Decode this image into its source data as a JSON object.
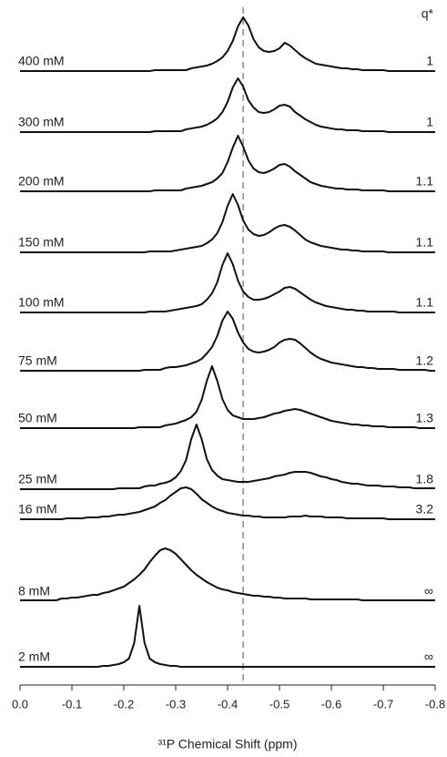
{
  "chart_data": {
    "type": "line",
    "x_label": "³¹P Chemical Shift (ppm)",
    "q_header": "q*",
    "reference_line": -0.43,
    "reference_color": "#888888",
    "xlim": [
      0,
      -0.8
    ],
    "xticks": [
      {
        "value": 0,
        "label": "0.0"
      },
      -0.1,
      -0.2,
      -0.3,
      -0.4,
      -0.5,
      -0.6,
      -0.7,
      -0.8
    ],
    "x": [
      0,
      -0.01,
      -0.02,
      -0.03,
      -0.04,
      -0.05,
      -0.06,
      -0.07,
      -0.08,
      -0.09,
      -0.1,
      -0.11,
      -0.12,
      -0.13,
      -0.14,
      -0.15,
      -0.16,
      -0.17,
      -0.18,
      -0.19,
      -0.2,
      -0.21,
      -0.22,
      -0.23,
      -0.24,
      -0.25,
      -0.26,
      -0.27,
      -0.28,
      -0.29,
      -0.3,
      -0.31,
      -0.32,
      -0.33,
      -0.34,
      -0.35,
      -0.36,
      -0.37,
      -0.38,
      -0.39,
      -0.4,
      -0.41,
      -0.42,
      -0.43,
      -0.44,
      -0.45,
      -0.46,
      -0.47,
      -0.48,
      -0.49,
      -0.5,
      -0.51,
      -0.52,
      -0.53,
      -0.54,
      -0.55,
      -0.56,
      -0.57,
      -0.58,
      -0.59,
      -0.6,
      -0.61,
      -0.62,
      -0.63,
      -0.64,
      -0.65,
      -0.66,
      -0.67,
      -0.68,
      -0.69,
      -0.7,
      -0.71,
      -0.72,
      -0.73,
      -0.74,
      -0.75,
      -0.76,
      -0.77,
      -0.78,
      -0.79,
      -0.8
    ],
    "series": [
      {
        "name": "400 mM",
        "q": 1,
        "color": "#111111",
        "values": [
          0,
          0,
          0,
          0,
          0,
          0,
          0,
          0,
          0,
          0,
          0,
          0,
          0,
          0,
          0,
          0,
          0,
          0,
          0,
          0,
          0,
          0,
          0,
          0,
          0,
          0,
          1,
          1,
          1,
          1,
          1,
          1,
          1,
          3,
          4,
          5,
          6,
          8,
          11,
          15,
          22,
          33,
          49,
          59,
          50,
          35,
          26,
          22,
          21,
          22,
          25,
          31,
          28,
          23,
          18,
          14,
          11,
          8,
          7,
          6,
          5,
          4,
          3,
          3,
          2,
          2,
          1,
          1,
          1,
          1,
          1,
          0,
          0,
          0,
          0,
          0,
          0,
          0,
          0,
          0,
          0
        ]
      },
      {
        "name": "300 mM",
        "q": 1,
        "color": "#111111",
        "values": [
          0,
          0,
          0,
          0,
          0,
          0,
          0,
          0,
          0,
          0,
          0,
          0,
          0,
          0,
          0,
          0,
          0,
          0,
          0,
          0,
          0,
          0,
          0,
          0,
          0,
          0,
          1,
          1,
          1,
          1,
          1,
          1,
          3,
          4,
          5,
          6,
          8,
          11,
          15,
          22,
          33,
          49,
          59,
          50,
          35,
          27,
          22,
          21,
          22,
          25,
          29,
          30,
          28,
          22,
          18,
          14,
          11,
          8,
          6,
          5,
          4,
          3,
          3,
          2,
          2,
          2,
          1,
          1,
          1,
          1,
          1,
          0,
          0,
          0,
          0,
          0,
          0,
          0,
          0,
          0,
          0
        ]
      },
      {
        "name": "200 mM",
        "q": 1.1,
        "color": "#111111",
        "values": [
          0,
          0,
          0,
          0,
          0,
          0,
          0,
          0,
          0,
          0,
          0,
          0,
          0,
          0,
          0,
          0,
          0,
          0,
          0,
          0,
          0,
          0,
          0,
          0,
          0,
          0,
          1,
          1,
          1,
          1,
          1,
          1,
          3,
          4,
          5,
          6,
          8,
          10,
          14,
          20,
          32,
          48,
          61,
          49,
          34,
          25,
          21,
          20,
          22,
          25,
          29,
          30,
          27,
          22,
          18,
          14,
          10,
          8,
          6,
          5,
          4,
          3,
          3,
          2,
          2,
          2,
          1,
          1,
          1,
          1,
          1,
          0,
          0,
          0,
          0,
          0,
          0,
          0,
          0,
          0,
          0
        ]
      },
      {
        "name": "150 mM",
        "q": 1.1,
        "color": "#111111",
        "values": [
          0,
          0,
          0,
          0,
          0,
          0,
          0,
          0,
          0,
          0,
          0,
          0,
          0,
          0,
          0,
          0,
          0,
          0,
          0,
          0,
          0,
          0,
          0,
          0,
          0,
          1,
          1,
          1,
          1,
          1,
          2,
          3,
          4,
          5,
          6,
          7,
          10,
          14,
          21,
          33,
          51,
          64,
          52,
          35,
          25,
          20,
          18,
          19,
          22,
          26,
          29,
          30,
          28,
          24,
          19,
          14,
          11,
          9,
          7,
          6,
          5,
          4,
          3,
          3,
          2,
          2,
          1,
          1,
          1,
          1,
          1,
          0,
          0,
          0,
          0,
          0,
          0,
          0,
          0,
          0,
          0
        ]
      },
      {
        "name": "100 mM",
        "q": 1.1,
        "color": "#111111",
        "values": [
          0,
          0,
          0,
          0,
          0,
          0,
          0,
          0,
          0,
          0,
          0,
          0,
          0,
          0,
          0,
          0,
          0,
          0,
          0,
          0,
          0,
          0,
          0,
          0,
          0,
          1,
          1,
          1,
          1,
          2,
          3,
          4,
          5,
          6,
          7,
          9,
          14,
          21,
          33,
          52,
          65,
          53,
          35,
          23,
          17,
          14,
          14,
          15,
          17,
          20,
          23,
          27,
          28,
          26,
          22,
          18,
          14,
          11,
          9,
          7,
          6,
          5,
          4,
          3,
          3,
          2,
          2,
          1,
          1,
          1,
          1,
          1,
          1,
          0,
          0,
          0,
          0,
          0,
          0,
          0,
          0
        ]
      },
      {
        "name": "75 mM",
        "q": 1.2,
        "color": "#111111",
        "values": [
          0,
          0,
          0,
          0,
          0,
          0,
          0,
          0,
          0,
          0,
          0,
          0,
          0,
          0,
          0,
          0,
          0,
          0,
          0,
          0,
          0,
          0,
          0,
          0,
          1,
          1,
          1,
          1,
          3,
          4,
          4,
          5,
          6,
          8,
          10,
          13,
          19,
          26,
          38,
          55,
          65,
          57,
          42,
          31,
          24,
          21,
          20,
          21,
          23,
          26,
          31,
          34,
          35,
          34,
          30,
          25,
          20,
          16,
          13,
          11,
          9,
          8,
          7,
          6,
          5,
          4,
          4,
          3,
          3,
          2,
          2,
          2,
          2,
          1,
          1,
          1,
          1,
          1,
          1,
          0,
          0
        ]
      },
      {
        "name": "50 mM",
        "q": 1.3,
        "color": "#111111",
        "values": [
          0,
          0,
          0,
          0,
          0,
          0,
          0,
          0,
          0,
          0,
          0,
          0,
          0,
          0,
          0,
          0,
          0,
          0,
          0,
          0,
          0,
          0,
          0,
          1,
          1,
          1,
          1,
          1,
          3,
          4,
          5,
          7,
          9,
          12,
          18,
          31,
          52,
          68,
          52,
          32,
          20,
          14,
          12,
          10,
          10,
          10,
          11,
          12,
          14,
          16,
          17,
          19,
          20,
          21,
          20,
          18,
          16,
          14,
          12,
          10,
          8,
          7,
          6,
          5,
          4,
          4,
          3,
          3,
          2,
          2,
          2,
          1,
          1,
          1,
          1,
          1,
          1,
          0,
          0,
          0,
          0
        ]
      },
      {
        "name": "25 mM",
        "q": 1.8,
        "color": "#111111",
        "values": [
          0,
          0,
          0,
          0,
          0,
          0,
          0,
          0,
          0,
          0,
          0,
          0,
          0,
          0,
          0,
          0,
          0,
          0,
          0,
          1,
          1,
          1,
          1,
          1,
          3,
          4,
          4,
          6,
          7,
          9,
          13,
          20,
          32,
          55,
          71,
          55,
          33,
          21,
          15,
          11,
          10,
          9,
          8,
          8,
          8,
          9,
          10,
          11,
          12,
          14,
          15,
          16,
          18,
          19,
          19,
          19,
          18,
          16,
          14,
          13,
          11,
          10,
          8,
          7,
          6,
          6,
          5,
          4,
          4,
          4,
          3,
          3,
          3,
          2,
          2,
          2,
          1,
          1,
          1,
          1,
          1
        ]
      },
      {
        "name": "16 mM",
        "q": 3.2,
        "color": "#111111",
        "values": [
          0,
          0,
          0,
          0,
          0,
          0,
          0,
          0,
          0,
          1,
          1,
          1,
          1,
          2,
          2,
          2,
          3,
          3,
          4,
          5,
          5,
          6,
          7,
          8,
          10,
          12,
          14,
          18,
          21,
          26,
          30,
          34,
          35,
          33,
          28,
          22,
          18,
          14,
          11,
          9,
          7,
          6,
          5,
          4,
          4,
          3,
          3,
          2,
          2,
          2,
          2,
          2,
          3,
          3,
          3,
          4,
          3,
          3,
          3,
          2,
          2,
          2,
          2,
          1,
          1,
          1,
          1,
          1,
          1,
          1,
          1,
          0,
          0,
          0,
          0,
          0,
          0,
          0,
          0,
          0,
          0
        ]
      },
      {
        "name": "8 mM",
        "q": "∞",
        "color": "#111111",
        "values": [
          1,
          1,
          1,
          1,
          1,
          1,
          1,
          1,
          3,
          3,
          4,
          4,
          5,
          6,
          7,
          7,
          9,
          10,
          12,
          14,
          16,
          20,
          24,
          29,
          35,
          43,
          50,
          56,
          58,
          56,
          52,
          46,
          40,
          34,
          29,
          25,
          21,
          18,
          15,
          13,
          12,
          10,
          9,
          8,
          7,
          6,
          6,
          5,
          5,
          4,
          4,
          3,
          3,
          3,
          3,
          3,
          2,
          2,
          2,
          2,
          2,
          2,
          2,
          2,
          2,
          2,
          1,
          1,
          1,
          1,
          1,
          1,
          1,
          1,
          1,
          1,
          1,
          1,
          1,
          1,
          1
        ]
      },
      {
        "name": "2 mM",
        "q": "∞",
        "color": "#111111",
        "values": [
          0,
          0,
          0,
          0,
          0,
          0,
          0,
          0,
          0,
          0,
          0,
          0,
          0,
          0,
          0,
          0,
          1,
          1,
          2,
          3,
          5,
          9,
          26,
          67,
          26,
          9,
          5,
          3,
          2,
          1,
          1,
          0,
          0,
          0,
          0,
          0,
          0,
          0,
          0,
          0,
          0,
          0,
          0,
          0,
          0,
          0,
          0,
          0,
          0,
          0,
          0,
          0,
          0,
          0,
          0,
          0,
          0,
          0,
          0,
          0,
          0,
          0,
          0,
          0,
          0,
          0,
          0,
          0,
          0,
          0,
          0,
          0,
          0,
          0,
          0,
          0,
          0,
          0,
          0,
          0,
          0
        ]
      }
    ]
  }
}
